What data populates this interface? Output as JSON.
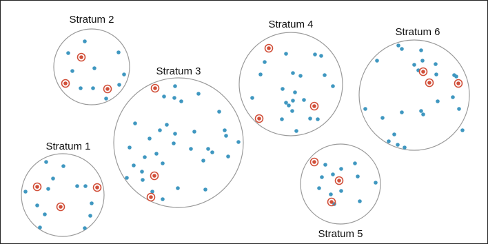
{
  "strata": [
    {
      "name": "Stratum 1"
    },
    {
      "name": "Stratum 2"
    },
    {
      "name": "Stratum 3"
    },
    {
      "name": "Stratum 4"
    },
    {
      "name": "Stratum 5"
    },
    {
      "name": "Stratum 6"
    }
  ],
  "colors": {
    "unit": "#3f97c0",
    "sampled": "#d14f39",
    "boundary": "#9a9a9a"
  }
}
